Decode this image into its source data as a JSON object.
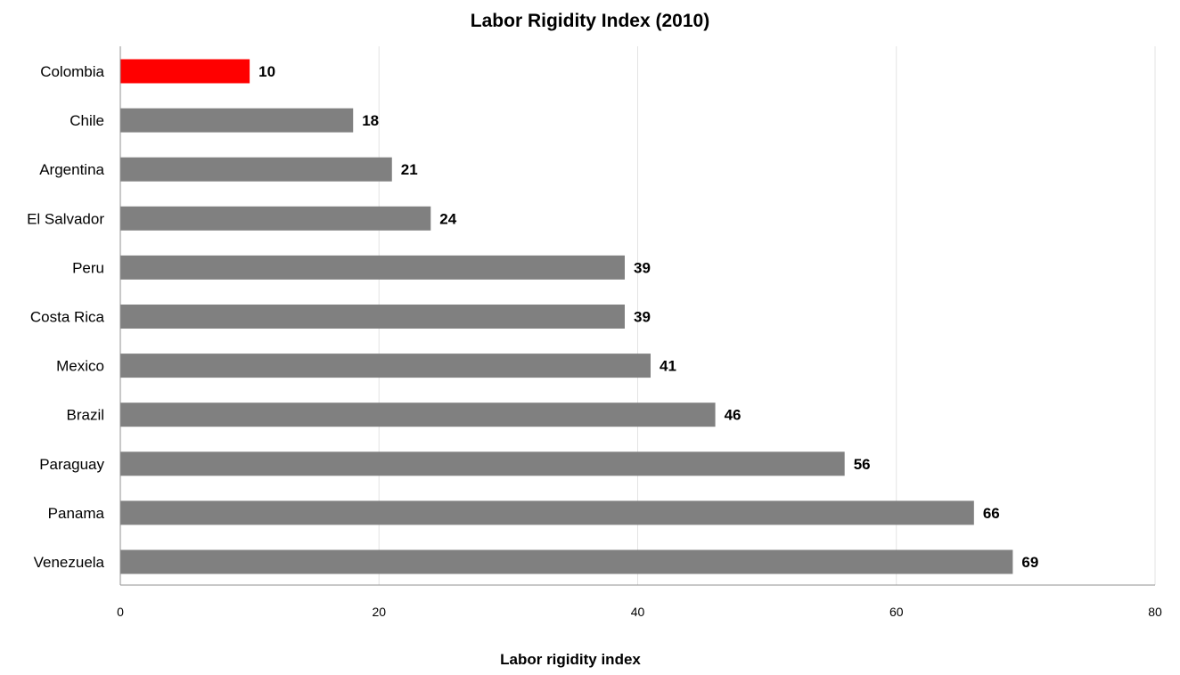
{
  "chart_data": {
    "type": "bar",
    "orientation": "horizontal",
    "title": "Labor Rigidity Index (2010)",
    "xlabel": "Labor rigidity index",
    "ylabel": "",
    "categories": [
      "Colombia",
      "Chile",
      "Argentina",
      "El Salvador",
      "Peru",
      "Costa Rica",
      "Mexico",
      "Brazil",
      "Paraguay",
      "Panama",
      "Venezuela"
    ],
    "values": [
      10,
      18,
      21,
      24,
      39,
      39,
      41,
      46,
      56,
      66,
      69
    ],
    "highlight": "Colombia",
    "xlim": [
      0,
      80
    ],
    "xticks": [
      0,
      20,
      40,
      60,
      80
    ],
    "grid": true,
    "data_labels": true,
    "colors": {
      "bar": "#808080",
      "highlight": "#ff0000",
      "grid": "#e3e3e3",
      "axis": "#909090"
    }
  }
}
